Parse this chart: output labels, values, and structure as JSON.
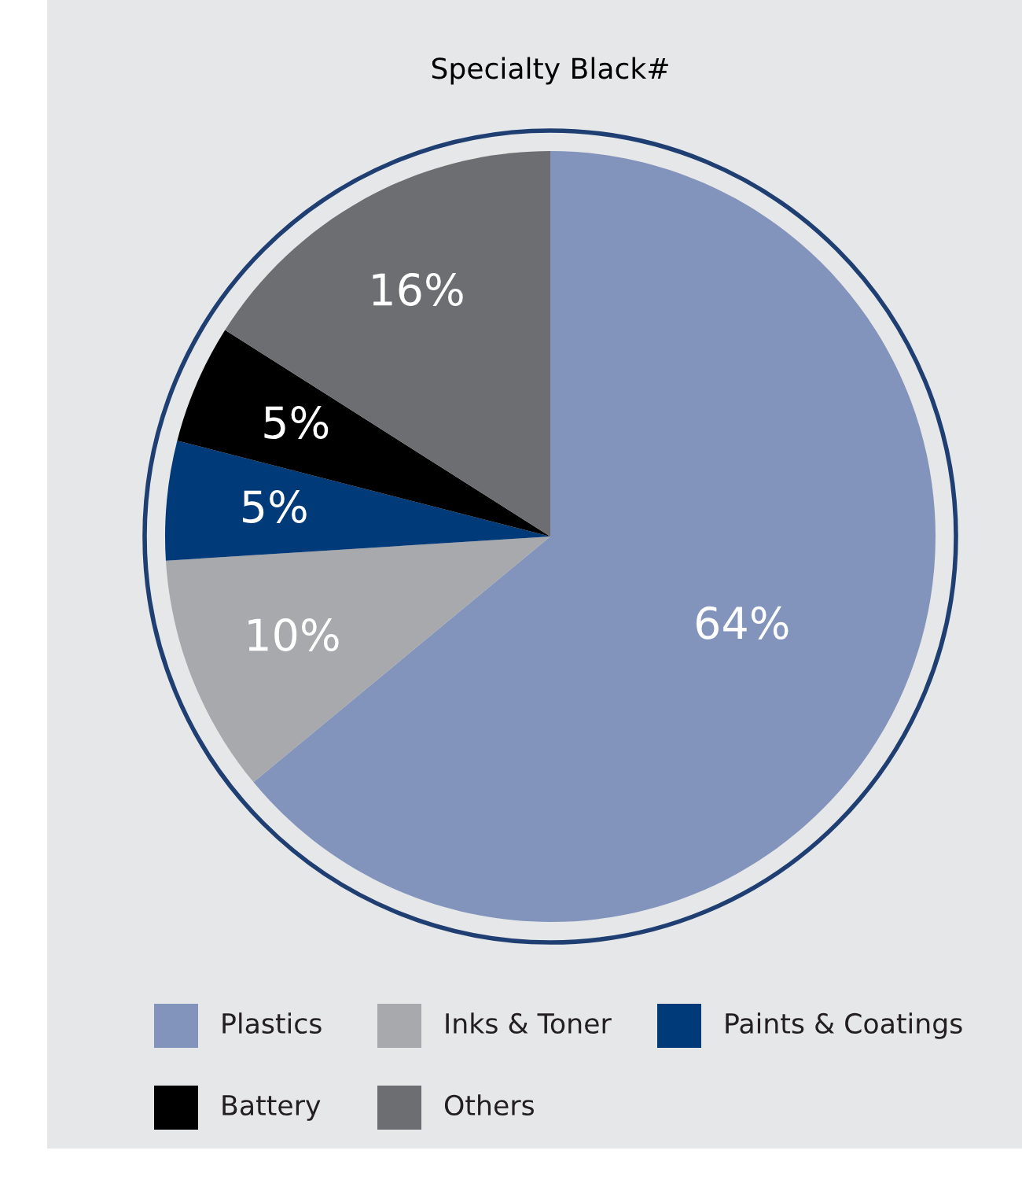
{
  "chart_data": {
    "type": "pie",
    "title": "Specialty Black#",
    "categories": [
      "Plastics",
      "Inks & Toner",
      "Paints & Coatings",
      "Battery",
      "Others"
    ],
    "values": [
      64,
      10,
      5,
      5,
      16
    ],
    "colors": [
      "#8294bb",
      "#a7a9ac",
      "#003a78",
      "#000000",
      "#6d6e71"
    ],
    "value_labels": [
      "64%",
      "10%",
      "5%",
      "5%",
      "16%"
    ],
    "legend": "bottom"
  }
}
